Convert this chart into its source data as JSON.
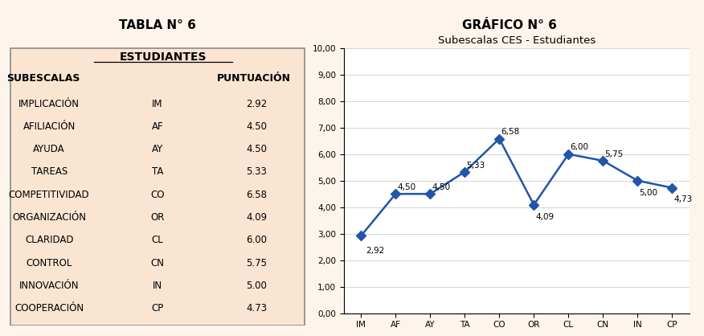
{
  "table_title": "TABLA N° 6",
  "graph_title": "GRÁFICO N° 6",
  "section_header": "ESTUDIANTES",
  "col1_header": "SUBESCALAS",
  "col2_header": "PUNTUACIÓN",
  "rows": [
    {
      "label": "IMPLICACIÓN",
      "abbr": "IM",
      "value": 2.92
    },
    {
      "label": "AFILIACIÓN",
      "abbr": "AF",
      "value": 4.5
    },
    {
      "label": "AYUDA",
      "abbr": "AY",
      "value": 4.5
    },
    {
      "label": "TAREAS",
      "abbr": "TA",
      "value": 5.33
    },
    {
      "label": "COMPETITIVIDAD",
      "abbr": "CO",
      "value": 6.58
    },
    {
      "label": "ORGANIZACIÓN",
      "abbr": "OR",
      "value": 4.09
    },
    {
      "label": "CLARIDAD",
      "abbr": "CL",
      "value": 6.0
    },
    {
      "label": "CONTROL",
      "abbr": "CN",
      "value": 5.75
    },
    {
      "label": "INNOVACIÓN",
      "abbr": "IN",
      "value": 5.0
    },
    {
      "label": "COOPERACIÓN",
      "abbr": "CP",
      "value": 4.73
    }
  ],
  "chart_title": "Subescalas CES - Estudiantes",
  "line_color": "#2255aa",
  "marker_style": "D",
  "marker_size": 6,
  "ylim": [
    0,
    10
  ],
  "yticks": [
    0.0,
    1.0,
    2.0,
    3.0,
    4.0,
    5.0,
    6.0,
    7.0,
    8.0,
    9.0,
    10.0
  ],
  "ytick_labels": [
    "0,00",
    "1,00",
    "2,00",
    "3,00",
    "4,00",
    "5,00",
    "6,00",
    "7,00",
    "8,00",
    "9,00",
    "10,00"
  ],
  "table_bg": "#fae5d3",
  "chart_bg": "#fdf5ec",
  "outer_bg": "#fdf5ec",
  "title_fontsize": 11,
  "header_fontsize": 9,
  "row_fontsize": 8.5,
  "chart_title_fontsize": 9.5,
  "annotation_fontsize": 7.5,
  "annotation_offset_x": [
    0.15,
    0.05,
    0.05,
    0.05,
    0.05,
    0.05,
    0.05,
    0.05,
    0.05,
    0.05
  ],
  "annotation_offset_y": [
    -0.55,
    0.25,
    0.25,
    0.25,
    0.25,
    -0.45,
    0.25,
    0.25,
    -0.45,
    -0.45
  ]
}
